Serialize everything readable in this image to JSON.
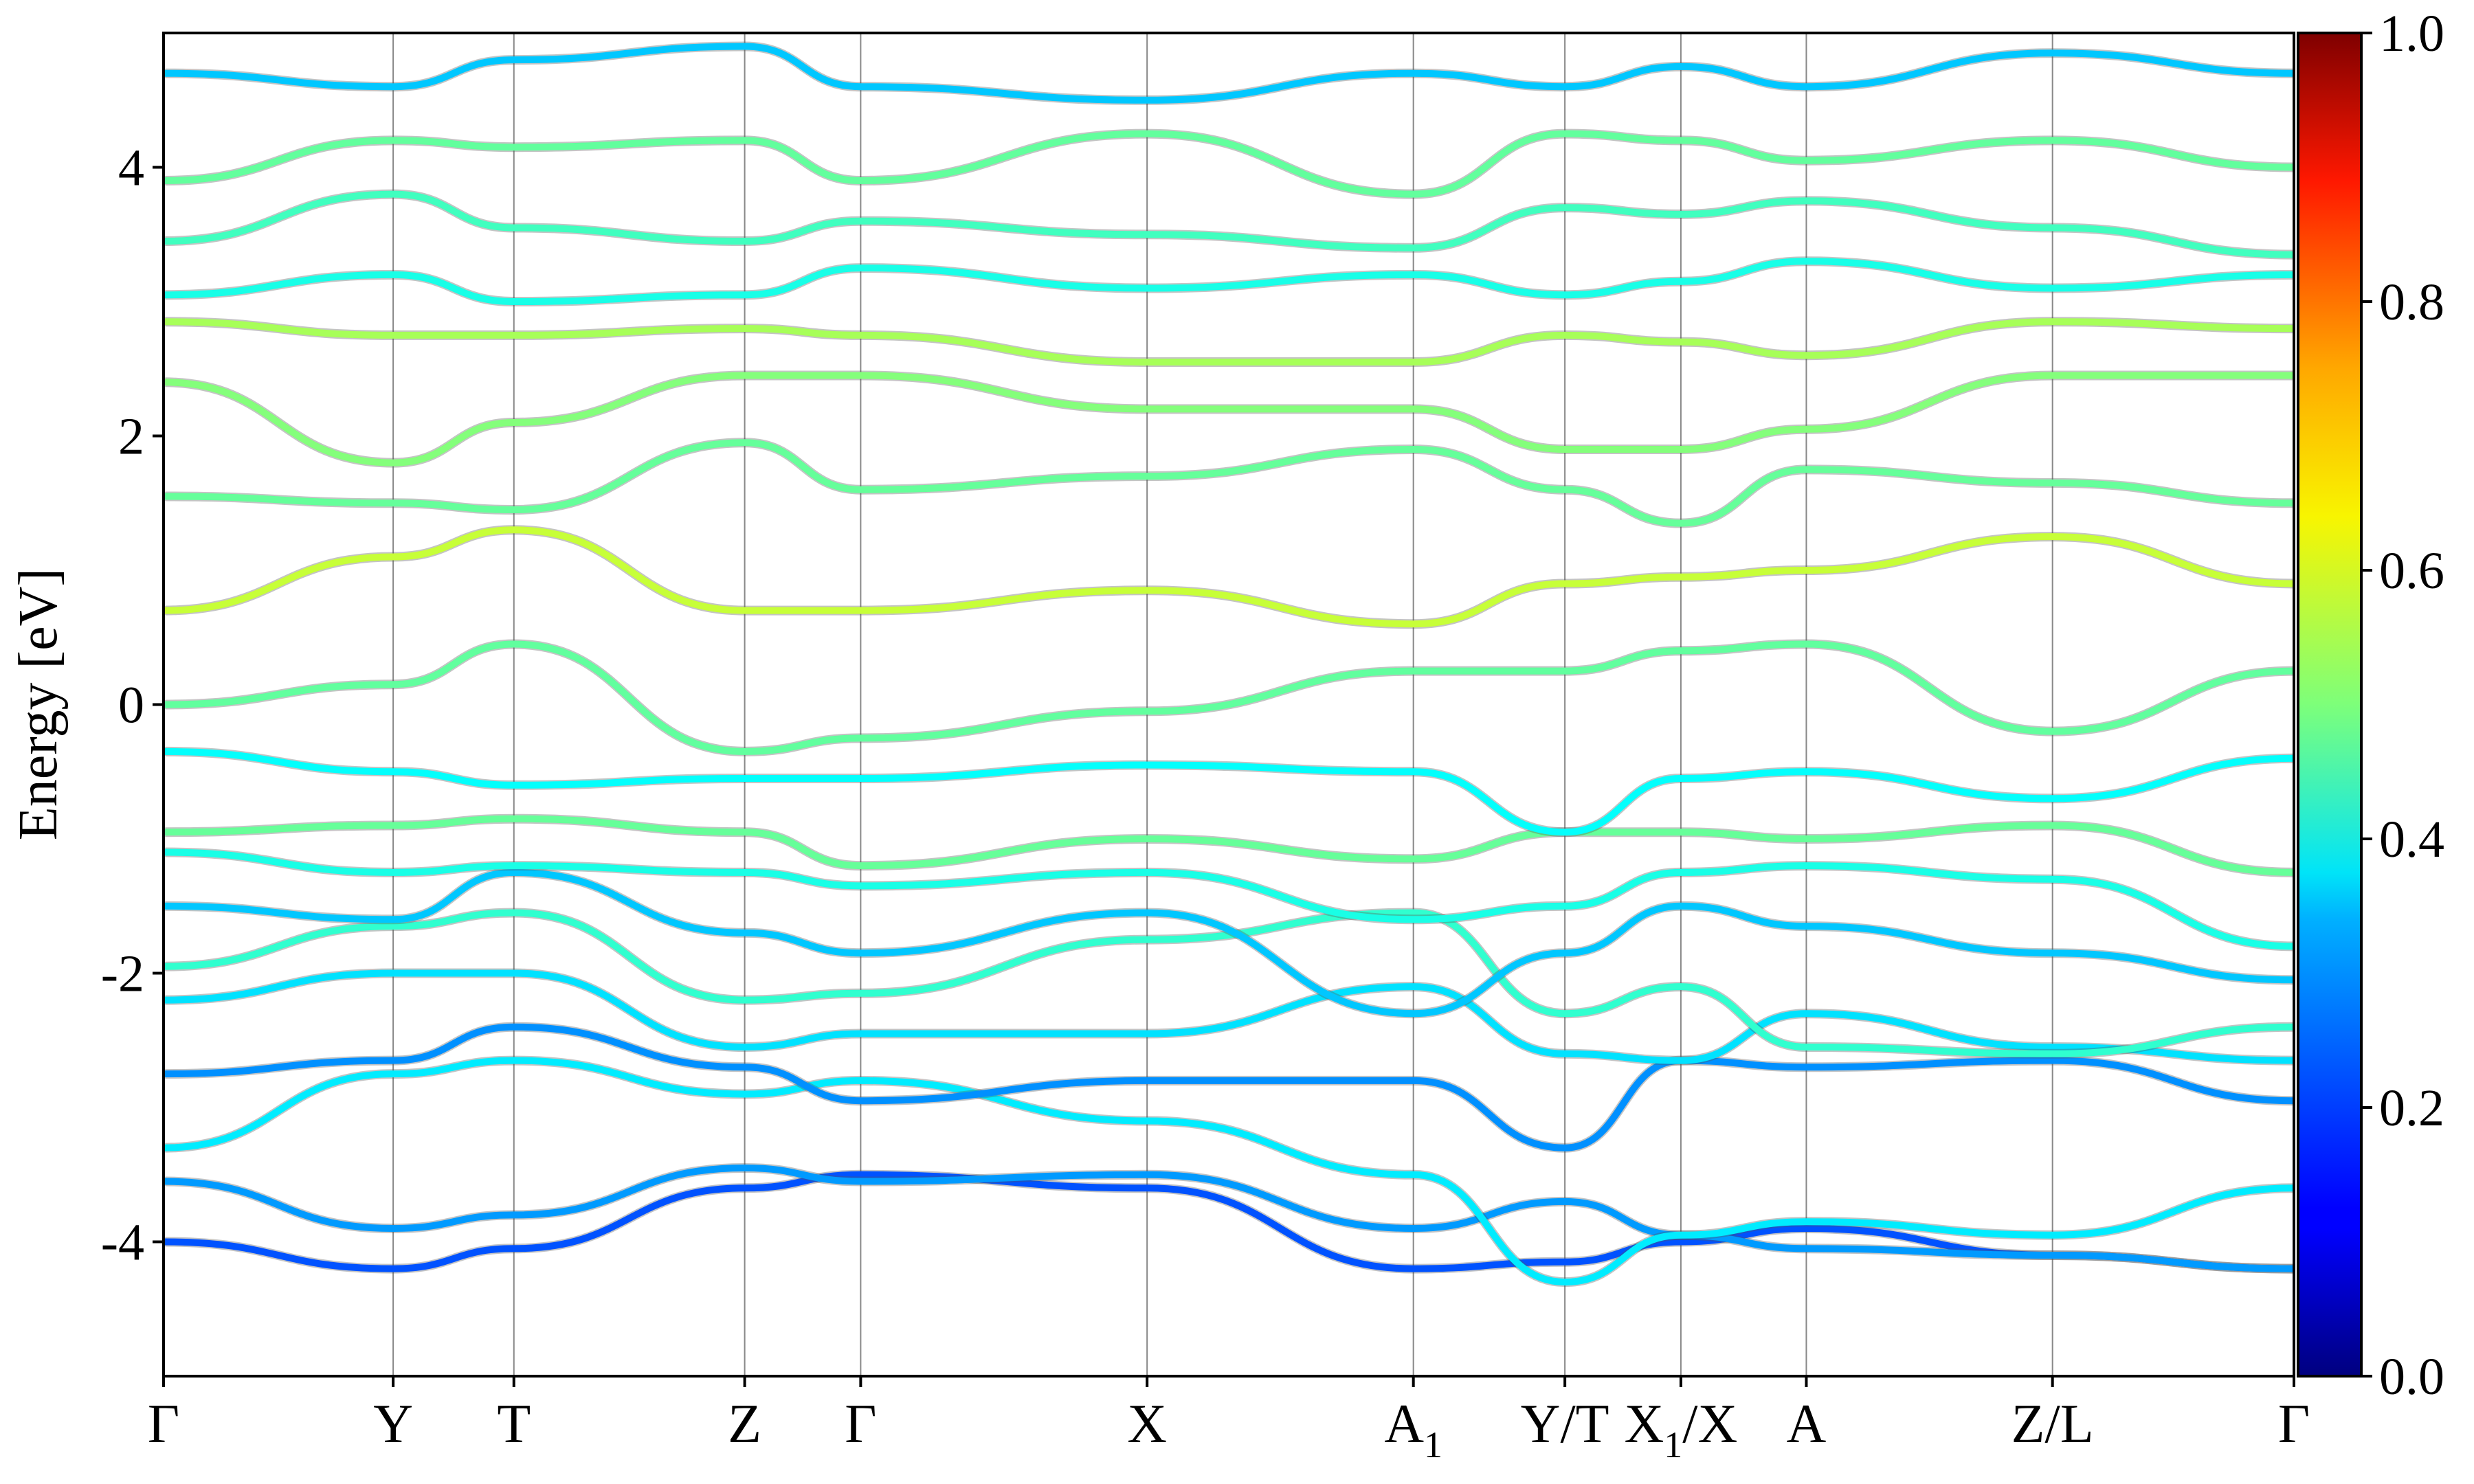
{
  "chart_data": {
    "type": "line",
    "title": "",
    "xlabel": "",
    "ylabel": "Energy [eV]",
    "ylim": [
      -5,
      5
    ],
    "xlim": [
      0,
      18
    ],
    "y_ticks": [
      -4,
      -2,
      0,
      2,
      4
    ],
    "grid": "vertical lines at high-symmetry points",
    "legend": "none",
    "x_ticks": [
      {
        "label": "Γ",
        "pos": 0.0
      },
      {
        "label": "Y",
        "pos": 1.94
      },
      {
        "label": "T",
        "pos": 2.96
      },
      {
        "label": "Z",
        "pos": 4.91
      },
      {
        "label": "Γ",
        "pos": 5.89
      },
      {
        "label": "X",
        "pos": 8.31
      },
      {
        "label": "A1",
        "pos": 10.56
      },
      {
        "label": "Y/T",
        "pos": 11.84
      },
      {
        "label": "X1/X",
        "pos": 12.82
      },
      {
        "label": "A",
        "pos": 13.88
      },
      {
        "label": "Z/L",
        "pos": 15.96
      },
      {
        "label": "Γ",
        "pos": 18.0
      }
    ],
    "colorbar": {
      "colormap": "jet",
      "range": [
        0.0,
        1.0
      ],
      "ticks": [
        "0.0",
        "0.2",
        "0.4",
        "0.6",
        "0.8",
        "1.0"
      ]
    },
    "series": [
      {
        "y": [
          -4.0,
          -4.2,
          -4.05,
          -3.6,
          -3.5,
          -3.6,
          -4.2,
          -4.15,
          -4.0,
          -3.9,
          -4.1,
          -4.2,
          -4.45
        ]
      },
      {
        "y": [
          -3.55,
          -3.9,
          -3.8,
          -3.45,
          -3.55,
          -3.5,
          -3.9,
          -3.7,
          -3.95,
          -4.05,
          -4.1,
          -4.2,
          -3.55
        ]
      },
      {
        "y": [
          -3.3,
          -2.75,
          -2.65,
          -2.9,
          -2.8,
          -3.1,
          -3.5,
          -4.3,
          -3.95,
          -3.85,
          -3.95,
          -3.6,
          -3.3
        ]
      },
      {
        "y": [
          -2.75,
          -2.65,
          -2.4,
          -2.7,
          -2.95,
          -2.8,
          -2.8,
          -3.3,
          -2.65,
          -2.7,
          -2.65,
          -2.95,
          -2.75
        ]
      },
      {
        "y": [
          -2.2,
          -2.0,
          -2.0,
          -2.55,
          -2.45,
          -2.45,
          -2.1,
          -2.6,
          -2.65,
          -2.3,
          -2.55,
          -2.65,
          -2.2
        ]
      },
      {
        "y": [
          -1.95,
          -1.65,
          -1.55,
          -2.2,
          -2.15,
          -1.75,
          -1.55,
          -2.3,
          -2.1,
          -2.55,
          -2.6,
          -2.4,
          -1.95
        ]
      },
      {
        "y": [
          -1.5,
          -1.6,
          -1.25,
          -1.7,
          -1.85,
          -1.55,
          -2.3,
          -1.85,
          -1.5,
          -1.65,
          -1.85,
          -2.05,
          -1.5
        ]
      },
      {
        "y": [
          -1.1,
          -1.25,
          -1.2,
          -1.25,
          -1.35,
          -1.25,
          -1.6,
          -1.5,
          -1.25,
          -1.2,
          -1.3,
          -1.8,
          -1.1
        ]
      },
      {
        "y": [
          -0.95,
          -0.9,
          -0.85,
          -0.95,
          -1.2,
          -1.0,
          -1.15,
          -0.95,
          -0.95,
          -1.0,
          -0.9,
          -1.25,
          -0.95
        ]
      },
      {
        "y": [
          -0.35,
          -0.5,
          -0.6,
          -0.55,
          -0.55,
          -0.45,
          -0.5,
          -0.95,
          -0.55,
          -0.5,
          -0.7,
          -0.4,
          -0.35
        ]
      },
      {
        "y": [
          0.0,
          0.15,
          0.45,
          -0.35,
          -0.25,
          -0.05,
          0.25,
          0.25,
          0.4,
          0.45,
          -0.2,
          0.25,
          0.0
        ]
      },
      {
        "y": [
          0.7,
          1.1,
          1.3,
          0.7,
          0.7,
          0.85,
          0.6,
          0.9,
          0.95,
          1.0,
          1.25,
          0.9,
          0.7
        ]
      },
      {
        "y": [
          1.55,
          1.5,
          1.45,
          1.95,
          1.6,
          1.7,
          1.9,
          1.6,
          1.35,
          1.75,
          1.65,
          1.5,
          1.55
        ]
      },
      {
        "y": [
          2.4,
          1.8,
          2.1,
          2.45,
          2.45,
          2.2,
          2.2,
          1.9,
          1.9,
          2.05,
          2.45,
          2.45,
          2.4
        ]
      },
      {
        "y": [
          2.85,
          2.75,
          2.75,
          2.8,
          2.75,
          2.55,
          2.55,
          2.75,
          2.7,
          2.6,
          2.85,
          2.8,
          2.85
        ]
      },
      {
        "y": [
          3.05,
          3.2,
          3.0,
          3.05,
          3.25,
          3.1,
          3.2,
          3.05,
          3.15,
          3.3,
          3.1,
          3.2,
          3.05
        ]
      },
      {
        "y": [
          3.45,
          3.8,
          3.55,
          3.45,
          3.6,
          3.5,
          3.4,
          3.7,
          3.65,
          3.75,
          3.55,
          3.35,
          3.45
        ]
      },
      {
        "y": [
          3.9,
          4.2,
          4.15,
          4.2,
          3.9,
          4.25,
          3.8,
          4.25,
          4.2,
          4.05,
          4.2,
          4.0,
          3.9
        ]
      },
      {
        "y": [
          4.7,
          4.6,
          4.8,
          4.9,
          4.6,
          4.5,
          4.7,
          4.6,
          4.75,
          4.6,
          4.85,
          4.7,
          4.7
        ]
      }
    ]
  }
}
